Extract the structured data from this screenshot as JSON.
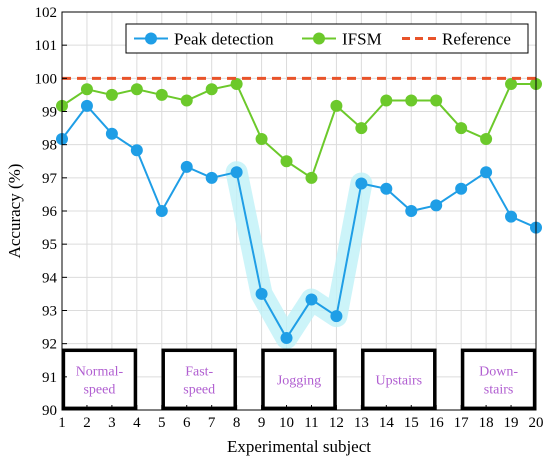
{
  "chart_data": {
    "type": "line",
    "xlabel": "Experimental subject",
    "ylabel": "Accuracy (%)",
    "xlim": [
      1,
      20
    ],
    "ylim": [
      90,
      102
    ],
    "x": [
      1,
      2,
      3,
      4,
      5,
      6,
      7,
      8,
      9,
      10,
      11,
      12,
      13,
      14,
      15,
      16,
      17,
      18,
      19,
      20
    ],
    "xticks": [
      "1",
      "2",
      "3",
      "4",
      "5",
      "6",
      "7",
      "8",
      "9",
      "10",
      "11",
      "12",
      "13",
      "14",
      "15",
      "16",
      "17",
      "18",
      "19",
      "20"
    ],
    "yticks": [
      "90",
      "91",
      "92",
      "93",
      "94",
      "95",
      "96",
      "97",
      "98",
      "99",
      "100",
      "101",
      "102"
    ],
    "grid": true,
    "legend_position": "top-right",
    "series": [
      {
        "name": "Peak detection",
        "color": "#1f9ee6",
        "style": "solid-marker",
        "values": [
          98.17,
          99.17,
          98.33,
          97.83,
          96.0,
          97.33,
          97.0,
          97.17,
          93.5,
          92.17,
          93.33,
          92.83,
          96.83,
          96.67,
          96.0,
          96.17,
          96.67,
          97.17,
          95.83,
          95.5
        ]
      },
      {
        "name": "IFSM",
        "color": "#6cc92b",
        "style": "solid-marker",
        "values": [
          99.17,
          99.67,
          99.5,
          99.67,
          99.5,
          99.33,
          99.67,
          99.83,
          98.17,
          97.5,
          97.0,
          99.17,
          98.5,
          99.33,
          99.33,
          99.33,
          98.5,
          98.17,
          99.83,
          99.83
        ]
      },
      {
        "name": "Reference",
        "color": "#e8532a",
        "style": "dashed",
        "value": 100
      }
    ],
    "groups": [
      {
        "label": [
          "Normal-",
          "speed"
        ],
        "from": 1,
        "to": 4
      },
      {
        "label": [
          "Fast-",
          "speed"
        ],
        "from": 5,
        "to": 8
      },
      {
        "label": [
          "Jogging"
        ],
        "from": 9,
        "to": 12
      },
      {
        "label": [
          "Upstairs"
        ],
        "from": 13,
        "to": 16
      },
      {
        "label": [
          "Down-",
          "stairs"
        ],
        "from": 17,
        "to": 20
      }
    ],
    "group_label_color": "#b15fd1",
    "highlight_color": "#bff1f7"
  }
}
